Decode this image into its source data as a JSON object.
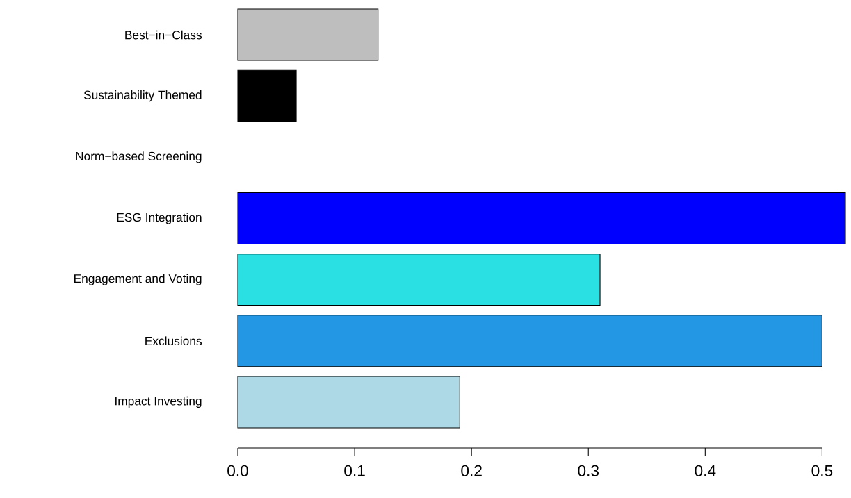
{
  "chart_data": {
    "type": "bar",
    "orientation": "horizontal",
    "categories": [
      "Best−in−Class",
      "Sustainability Themed",
      "Norm−based Screening",
      "ESG Integration",
      "Engagement and Voting",
      "Exclusions",
      "Impact Investing"
    ],
    "values": [
      0.12,
      0.05,
      null,
      0.52,
      0.31,
      0.5,
      0.19
    ],
    "colors": [
      "#bebebe",
      "#000000",
      null,
      "#0000ff",
      "#2ae0e3",
      "#2396e4",
      "#add8e6"
    ],
    "xlim": [
      0,
      0.52
    ],
    "xticks": [
      {
        "value": 0,
        "label": "0.0"
      },
      0.1,
      0.2,
      0.3,
      0.4,
      0.5
    ]
  }
}
